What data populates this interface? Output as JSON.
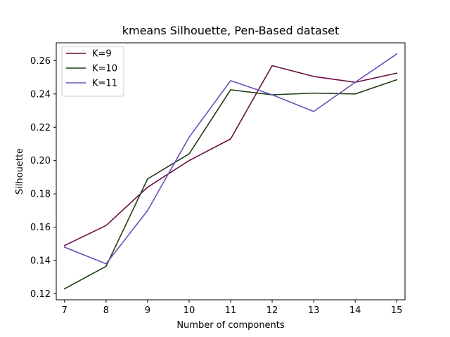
{
  "chart_data": {
    "type": "line",
    "title": "kmeans Silhouette, Pen-Based dataset",
    "xlabel": "Number of components",
    "ylabel": "Silhouette",
    "x": [
      7,
      8,
      9,
      10,
      11,
      12,
      13,
      14,
      15
    ],
    "xlim": [
      6.8,
      15.2
    ],
    "ylim": [
      0.1164,
      0.2707
    ],
    "xticks": [
      "7",
      "8",
      "9",
      "10",
      "11",
      "12",
      "13",
      "14",
      "15"
    ],
    "yticks": [
      "0.12",
      "0.14",
      "0.16",
      "0.18",
      "0.20",
      "0.22",
      "0.24",
      "0.26"
    ],
    "grid": false,
    "legend_position": "upper left",
    "series": [
      {
        "name": "K=9",
        "color": "#6a0d3f",
        "values": [
          0.149,
          0.161,
          0.184,
          0.2,
          0.213,
          0.257,
          0.2505,
          0.247,
          0.2525
        ]
      },
      {
        "name": "K=10",
        "color": "#1f3d12",
        "values": [
          0.123,
          0.1365,
          0.189,
          0.204,
          0.2425,
          0.2395,
          0.2405,
          0.24,
          0.2485
        ]
      },
      {
        "name": "K=11",
        "color": "#6a50b8",
        "values": [
          0.148,
          0.138,
          0.17,
          0.214,
          0.248,
          0.2395,
          0.2295,
          0.247,
          0.264
        ]
      }
    ]
  }
}
